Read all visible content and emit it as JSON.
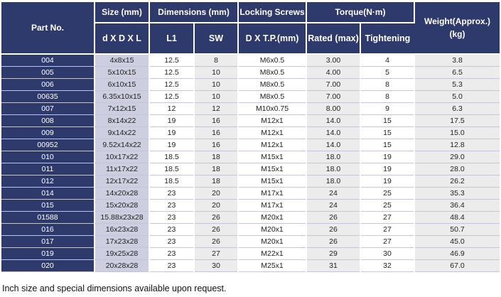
{
  "header": {
    "part_no": "Part No.",
    "size": "Size (mm)",
    "size_sub": "d X D X L",
    "dimensions": "Dimensions (mm)",
    "dim_l1": "L1",
    "dim_sw": "SW",
    "locking_screws": "Locking Screws",
    "screw_sub": "D X T.P.(mm)",
    "torque": "Torque(N·m)",
    "torque_rated": "Rated (max)",
    "torque_tightening": "Tightening",
    "weight": "Weight(Approx.) (kg)"
  },
  "rows": [
    [
      "004",
      "4x8x15",
      "12.5",
      "8",
      "M6x0.5",
      "3.00",
      "4",
      "3.8"
    ],
    [
      "005",
      "5x10x15",
      "12.5",
      "10",
      "M8x0.5",
      "4.00",
      "5",
      "6.5"
    ],
    [
      "006",
      "6x10x15",
      "12.5",
      "10",
      "M8x0.5",
      "7.00",
      "8",
      "5.3"
    ],
    [
      "00635",
      "6.35x10x15",
      "12.5",
      "10",
      "M8x0.5",
      "7.00",
      "8",
      "5.0"
    ],
    [
      "007",
      "7x12x15",
      "12",
      "12",
      "M10x0.75",
      "8.00",
      "9",
      "6.3"
    ],
    [
      "008",
      "8x14x22",
      "19",
      "16",
      "M12x1",
      "14.0",
      "15",
      "17.5"
    ],
    [
      "009",
      "9x14x22",
      "19",
      "16",
      "M12x1",
      "14.0",
      "15",
      "15.0"
    ],
    [
      "00952",
      "9.52x14x22",
      "19",
      "16",
      "M12x1",
      "14.0",
      "15",
      "12.8"
    ],
    [
      "010",
      "10x17x22",
      "18.5",
      "18",
      "M15x1",
      "18.0",
      "19",
      "29.0"
    ],
    [
      "011",
      "11x17x22",
      "18.5",
      "18",
      "M15x1",
      "18.0",
      "19",
      "28.0"
    ],
    [
      "012",
      "12x17x22",
      "18.5",
      "18",
      "M15x1",
      "18.0",
      "19",
      "26.2"
    ],
    [
      "014",
      "14x20x28",
      "23",
      "20",
      "M17x1",
      "24",
      "25",
      "35.3"
    ],
    [
      "015",
      "15x20x28",
      "23",
      "20",
      "M17x1",
      "24",
      "25",
      "36.4"
    ],
    [
      "01588",
      "15.88x23x28",
      "23",
      "26",
      "M20x1",
      "26",
      "27",
      "48.4"
    ],
    [
      "016",
      "16x23x28",
      "23",
      "26",
      "M20x1",
      "26",
      "27",
      "50.7"
    ],
    [
      "017",
      "17x23x28",
      "23",
      "26",
      "M20x1",
      "26",
      "27",
      "45.0"
    ],
    [
      "019",
      "19x25x28",
      "23",
      "27",
      "M22x1",
      "29",
      "30",
      "46.9"
    ],
    [
      "020",
      "20x28x28",
      "23",
      "30",
      "M25x1",
      "31",
      "32",
      "67.0"
    ]
  ],
  "footnote": "Inch size and special dimensions available upon request."
}
